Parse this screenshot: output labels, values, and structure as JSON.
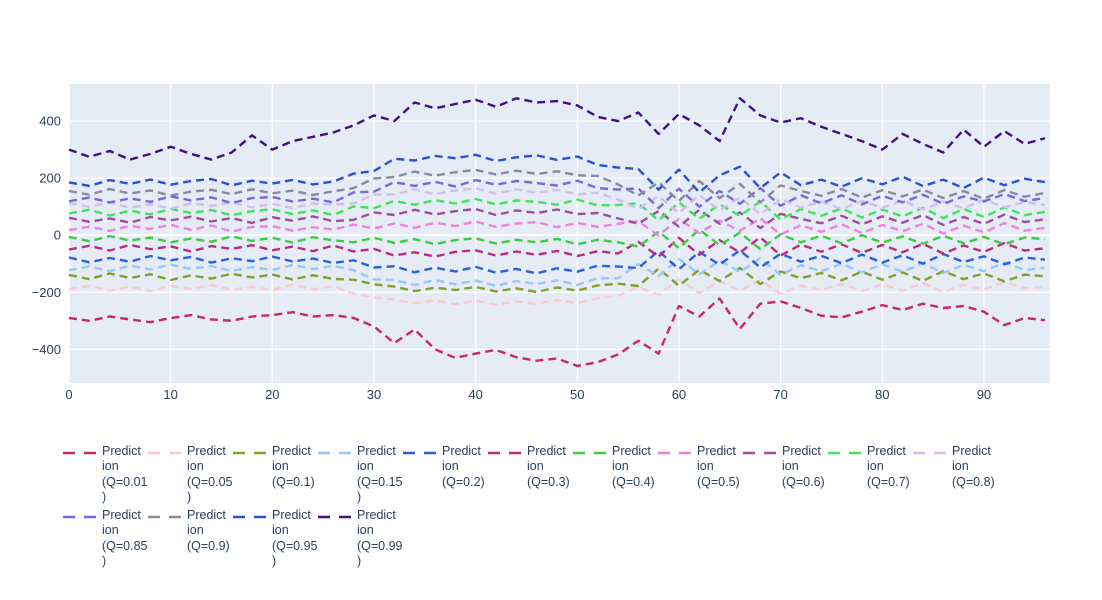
{
  "figure": {
    "title": "",
    "background": "#ffffff",
    "plot_background": "#E5ECF6",
    "grid_color": "#ffffff",
    "tick_label_color": "#2a3f5f",
    "x_ticks": [
      0,
      10,
      20,
      30,
      40,
      50,
      60,
      70,
      80,
      90
    ],
    "x_tick_labels": [
      "0",
      "10",
      "20",
      "30",
      "40",
      "50",
      "60",
      "70",
      "80",
      "90"
    ],
    "y_ticks": [
      -400,
      -200,
      0,
      200,
      400
    ],
    "y_tick_labels": [
      "−400",
      "−200",
      "0",
      "200",
      "400"
    ]
  },
  "chart_data": {
    "type": "line",
    "title": "",
    "xlabel": "",
    "ylabel": "",
    "xlim": [
      0,
      96.5
    ],
    "ylim": [
      -518,
      530
    ],
    "grid": true,
    "legend_position": "bottom",
    "line_style": "dashed",
    "x": [
      0,
      2,
      4,
      6,
      8,
      10,
      12,
      14,
      16,
      18,
      20,
      22,
      24,
      26,
      28,
      30,
      32,
      34,
      36,
      38,
      40,
      42,
      44,
      46,
      48,
      50,
      52,
      54,
      56,
      58,
      60,
      62,
      64,
      66,
      68,
      70,
      72,
      74,
      76,
      78,
      80,
      82,
      84,
      86,
      88,
      90,
      92,
      94,
      96
    ],
    "series": [
      {
        "name": "Prediction (Q=0.01)",
        "quantile": 0.01,
        "color": "#C9295E",
        "legend_display": "Predict\nion\n(Q=0.01\n)",
        "values": [
          -290,
          -300,
          -285,
          -295,
          -305,
          -290,
          -280,
          -295,
          -300,
          -285,
          -280,
          -270,
          -285,
          -280,
          -290,
          -320,
          -378,
          -330,
          -400,
          -430,
          -415,
          -402,
          -428,
          -440,
          -432,
          -458,
          -445,
          -418,
          -370,
          -415,
          -248,
          -285,
          -222,
          -328,
          -240,
          -232,
          -255,
          -282,
          -288,
          -268,
          -245,
          -262,
          -240,
          -255,
          -248,
          -268,
          -315,
          -290,
          -298
        ]
      },
      {
        "name": "Prediction (Q=0.05)",
        "quantile": 0.05,
        "color": "#F8C8D4",
        "legend_display": "Predict\nion\n(Q=0.05\n)",
        "values": [
          -189,
          -178,
          -194,
          -180,
          -196,
          -177,
          -188,
          -175,
          -191,
          -181,
          -193,
          -173,
          -190,
          -178,
          -205,
          -218,
          -226,
          -238,
          -228,
          -242,
          -230,
          -244,
          -232,
          -241,
          -227,
          -238,
          -222,
          -212,
          -182,
          -209,
          -155,
          -203,
          -161,
          -195,
          -157,
          -205,
          -177,
          -192,
          -170,
          -196,
          -172,
          -194,
          -168,
          -198,
          -174,
          -190,
          -164,
          -186,
          -182
        ]
      },
      {
        "name": "Prediction (Q=0.1)",
        "quantile": 0.1,
        "color": "#7FA22B",
        "legend_display": "Predict\nion\n(Q=0.1)",
        "values": [
          -139,
          -154,
          -134,
          -150,
          -137,
          -157,
          -141,
          -152,
          -135,
          -148,
          -138,
          -155,
          -140,
          -153,
          -156,
          -172,
          -180,
          -196,
          -184,
          -192,
          -181,
          -197,
          -186,
          -199,
          -183,
          -194,
          -176,
          -170,
          -178,
          -117,
          -177,
          -121,
          -161,
          -115,
          -171,
          -127,
          -151,
          -132,
          -158,
          -128,
          -156,
          -130,
          -160,
          -126,
          -154,
          -134,
          -162,
          -138,
          -144
        ]
      },
      {
        "name": "Prediction (Q=0.15)",
        "quantile": 0.15,
        "color": "#9DC6F0",
        "legend_display": "Predict\nion\n(Q=0.15\n)",
        "values": [
          -123,
          -109,
          -126,
          -106,
          -120,
          -103,
          -118,
          -108,
          -125,
          -111,
          -122,
          -104,
          -119,
          -107,
          -123,
          -155,
          -157,
          -175,
          -157,
          -172,
          -159,
          -178,
          -161,
          -171,
          -158,
          -174,
          -151,
          -151,
          -101,
          -143,
          -83,
          -137,
          -89,
          -129,
          -81,
          -139,
          -105,
          -126,
          -100,
          -130,
          -102,
          -128,
          -98,
          -132,
          -104,
          -126,
          -96,
          -122,
          -114
        ]
      },
      {
        "name": "Prediction (Q=0.2)",
        "quantile": 0.2,
        "color": "#2A62DC",
        "legend_display": "Predict\nion\n(Q=0.2)",
        "values": [
          -78,
          -95,
          -80,
          -93,
          -73,
          -88,
          -76,
          -96,
          -81,
          -91,
          -75,
          -92,
          -82,
          -97,
          -88,
          -113,
          -109,
          -130,
          -114,
          -127,
          -111,
          -131,
          -118,
          -134,
          -116,
          -128,
          -107,
          -110,
          -115,
          -55,
          -119,
          -59,
          -103,
          -53,
          -113,
          -65,
          -93,
          -72,
          -98,
          -68,
          -96,
          -70,
          -100,
          -66,
          -94,
          -74,
          -102,
          -78,
          -86
        ]
      },
      {
        "name": "Prediction (Q=0.3)",
        "quantile": 0.3,
        "color": "#BA2D7E",
        "legend_display": "Predict\nion\n(Q=0.3)",
        "values": [
          -50,
          -37,
          -54,
          -34,
          -49,
          -39,
          -57,
          -38,
          -48,
          -35,
          -53,
          -40,
          -56,
          -36,
          -57,
          -48,
          -71,
          -60,
          -75,
          -58,
          -53,
          -71,
          -57,
          -69,
          -55,
          -73,
          -56,
          -64,
          -23,
          -75,
          -9,
          -69,
          -17,
          -61,
          -7,
          -71,
          -33,
          -58,
          -32,
          -62,
          -34,
          -60,
          -30,
          -64,
          -36,
          -58,
          -28,
          -54,
          -46
        ]
      },
      {
        "name": "Prediction (Q=0.4)",
        "quantile": 0.4,
        "color": "#3ECC3E",
        "legend_display": "Predict\nion\n(Q=0.4)",
        "values": [
          -6,
          -21,
          -3,
          -19,
          -8,
          -25,
          -12,
          -23,
          -4,
          -20,
          -9,
          -26,
          -7,
          -18,
          -25,
          -9,
          -27,
          -14,
          -31,
          -17,
          -11,
          -29,
          -16,
          -25,
          -13,
          -32,
          -16,
          -25,
          -40,
          13,
          -45,
          20,
          -35,
          9,
          -49,
          3,
          -25,
          -2,
          -28,
          0,
          -26,
          -4,
          -30,
          -2,
          -28,
          -6,
          -32,
          -8,
          -14
        ]
      },
      {
        "name": "Prediction (Q=0.5)",
        "quantile": 0.5,
        "color": "#EE82DC",
        "legend_display": "Predict\nion\n(Q=0.5)",
        "values": [
          18,
          30,
          15,
          33,
          22,
          36,
          19,
          34,
          13,
          29,
          32,
          16,
          28,
          20,
          37,
          24,
          41,
          26,
          44,
          32,
          48,
          29,
          41,
          46,
          28,
          43,
          29,
          40,
          49,
          -1,
          57,
          7,
          51,
          15,
          59,
          3,
          35,
          12,
          38,
          8,
          36,
          14,
          40,
          6,
          34,
          10,
          42,
          16,
          26
        ]
      },
      {
        "name": "Prediction (Q=0.6)",
        "quantile": 0.6,
        "color": "#9C4F9C",
        "legend_display": "Predict\nion\n(Q=0.6)",
        "values": [
          61,
          47,
          59,
          44,
          64,
          52,
          65,
          48,
          60,
          43,
          63,
          51,
          66,
          49,
          54,
          80,
          71,
          89,
          73,
          84,
          92,
          71,
          87,
          78,
          90,
          74,
          78,
          59,
          40,
          85,
          30,
          89,
          40,
          80,
          25,
          75,
          57,
          42,
          68,
          38,
          66,
          44,
          70,
          36,
          64,
          40,
          72,
          46,
          56
        ]
      },
      {
        "name": "Prediction (Q=0.7)",
        "quantile": 0.7,
        "color": "#41E457",
        "legend_display": "Predict\nion\n(Q=0.7)",
        "values": [
          76,
          89,
          69,
          86,
          73,
          92,
          78,
          88,
          70,
          84,
          91,
          74,
          87,
          71,
          101,
          95,
          120,
          107,
          123,
          111,
          127,
          108,
          122,
          117,
          107,
          125,
          105,
          106,
          112,
          52,
          115,
          58,
          108,
          68,
          118,
          55,
          92,
          68,
          94,
          62,
          90,
          66,
          96,
          60,
          92,
          64,
          98,
          70,
          82
        ]
      },
      {
        "name": "Prediction (Q=0.8)",
        "quantile": 0.8,
        "color": "#D7BBEA",
        "legend_display": "Predict\nion\n(Q=0.8)",
        "values": [
          113,
          100,
          115,
          96,
          109,
          93,
          112,
          102,
          116,
          97,
          110,
          95,
          111,
          107,
          112,
          142,
          143,
          160,
          144,
          157,
          164,
          146,
          161,
          149,
          159,
          143,
          149,
          125,
          92,
          137,
          77,
          141,
          87,
          133,
          73,
          127,
          97,
          118,
          92,
          120,
          96,
          122,
          90,
          118,
          94,
          124,
          98,
          116,
          106
        ]
      },
      {
        "name": "Prediction (Q=0.85)",
        "quantile": 0.85,
        "color": "#7A66DE",
        "legend_display": "Predict\nion\n(Q=0.85\n)",
        "values": [
          119,
          132,
          115,
          129,
          117,
          136,
          122,
          133,
          113,
          130,
          134,
          118,
          128,
          115,
          150,
          153,
          186,
          173,
          187,
          171,
          193,
          177,
          190,
          183,
          174,
          191,
          165,
          160,
          164,
          95,
          163,
          100,
          155,
          110,
          165,
          103,
          140,
          112,
          140,
          108,
          138,
          115,
          142,
          110,
          136,
          118,
          144,
          120,
          130
        ]
      },
      {
        "name": "Prediction (Q=0.9)",
        "quantile": 0.9,
        "color": "#8A8A9E",
        "legend_display": "Predict\nion\n(Q=0.9)",
        "values": [
          155,
          142,
          162,
          146,
          157,
          139,
          153,
          159,
          144,
          161,
          147,
          156,
          141,
          154,
          165,
          199,
          204,
          223,
          209,
          221,
          229,
          213,
          226,
          215,
          224,
          210,
          208,
          178,
          139,
          185,
          120,
          190,
          130,
          180,
          115,
          175,
          155,
          138,
          162,
          132,
          158,
          136,
          160,
          130,
          155,
          128,
          158,
          135,
          148
        ]
      },
      {
        "name": "Prediction (Q=0.95)",
        "quantile": 0.95,
        "color": "#2A50D8",
        "legend_display": "Predict\nion\n(Q=0.95\n)",
        "values": [
          185,
          173,
          193,
          180,
          195,
          177,
          190,
          197,
          175,
          191,
          181,
          194,
          178,
          188,
          216,
          225,
          268,
          262,
          278,
          270,
          282,
          260,
          273,
          280,
          264,
          276,
          246,
          237,
          232,
          160,
          230,
          150,
          210,
          240,
          165,
          220,
          175,
          195,
          170,
          200,
          178,
          205,
          172,
          195,
          165,
          202,
          175,
          198,
          186
        ]
      },
      {
        "name": "Prediction (Q=0.99)",
        "quantile": 0.99,
        "color": "#430E86",
        "legend_display": "Predict\nion\n(Q=0.99\n)",
        "values": [
          300,
          275,
          295,
          265,
          285,
          310,
          285,
          265,
          290,
          350,
          300,
          330,
          345,
          360,
          385,
          420,
          400,
          465,
          445,
          460,
          475,
          450,
          480,
          465,
          470,
          455,
          415,
          400,
          430,
          355,
          425,
          385,
          330,
          480,
          420,
          395,
          410,
          380,
          355,
          330,
          300,
          355,
          320,
          290,
          370,
          310,
          365,
          320,
          340
        ]
      }
    ]
  }
}
